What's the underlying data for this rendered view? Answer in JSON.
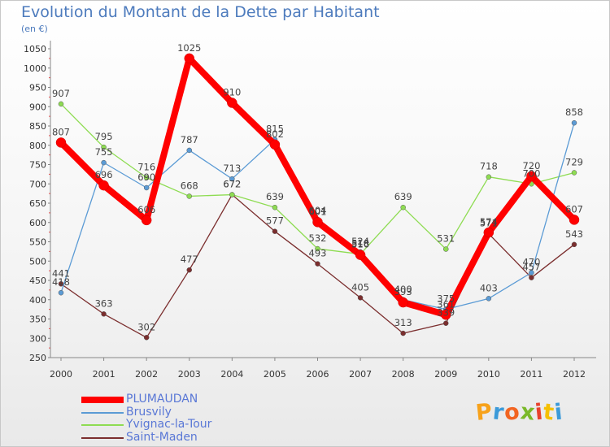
{
  "header": {
    "title": "Evolution du Montant de la Dette par Habitant",
    "unit": "(en €)"
  },
  "logo": {
    "text": "Proxiti",
    "letters": [
      "P",
      "r",
      "o",
      "x",
      "i",
      "t",
      "i"
    ],
    "colors": [
      "#f7a21b",
      "#3b9ad9",
      "#f26522",
      "#7ab929",
      "#e8412c",
      "#f5c000",
      "#3b9ad9"
    ]
  },
  "chart_data": {
    "type": "line",
    "categories": [
      "2000",
      "2001",
      "2002",
      "2003",
      "2004",
      "2005",
      "2006",
      "2007",
      "2008",
      "2009",
      "2010",
      "2011",
      "2012"
    ],
    "ylim": [
      250,
      1050
    ],
    "yticks": [
      250,
      300,
      350,
      400,
      450,
      500,
      550,
      600,
      650,
      700,
      750,
      800,
      850,
      900,
      950,
      1000,
      1050
    ],
    "grid": false,
    "legend_position": "bottom-left",
    "series": [
      {
        "name": "PLUMAUDAN",
        "color": "#ff0000",
        "values": [
          807,
          696,
          606,
          1025,
          910,
          802,
          601,
          516,
          393,
          361,
          574,
          720,
          607
        ]
      },
      {
        "name": "Brusvily",
        "color": "#5b9bd5",
        "values": [
          418,
          755,
          690,
          787,
          713,
          815,
          604,
          524,
          400,
          375,
          403,
          470,
          858
        ]
      },
      {
        "name": "Yvignac-la-Tour",
        "color": "#8edc52",
        "values": [
          907,
          795,
          716,
          668,
          672,
          639,
          532,
          518,
          639,
          531,
          718,
          700,
          729
        ]
      },
      {
        "name": "Saint-Maden",
        "color": "#7b2e2e",
        "values": [
          441,
          363,
          302,
          477,
          672,
          577,
          493,
          405,
          313,
          339,
          571,
          457,
          543
        ]
      }
    ]
  }
}
